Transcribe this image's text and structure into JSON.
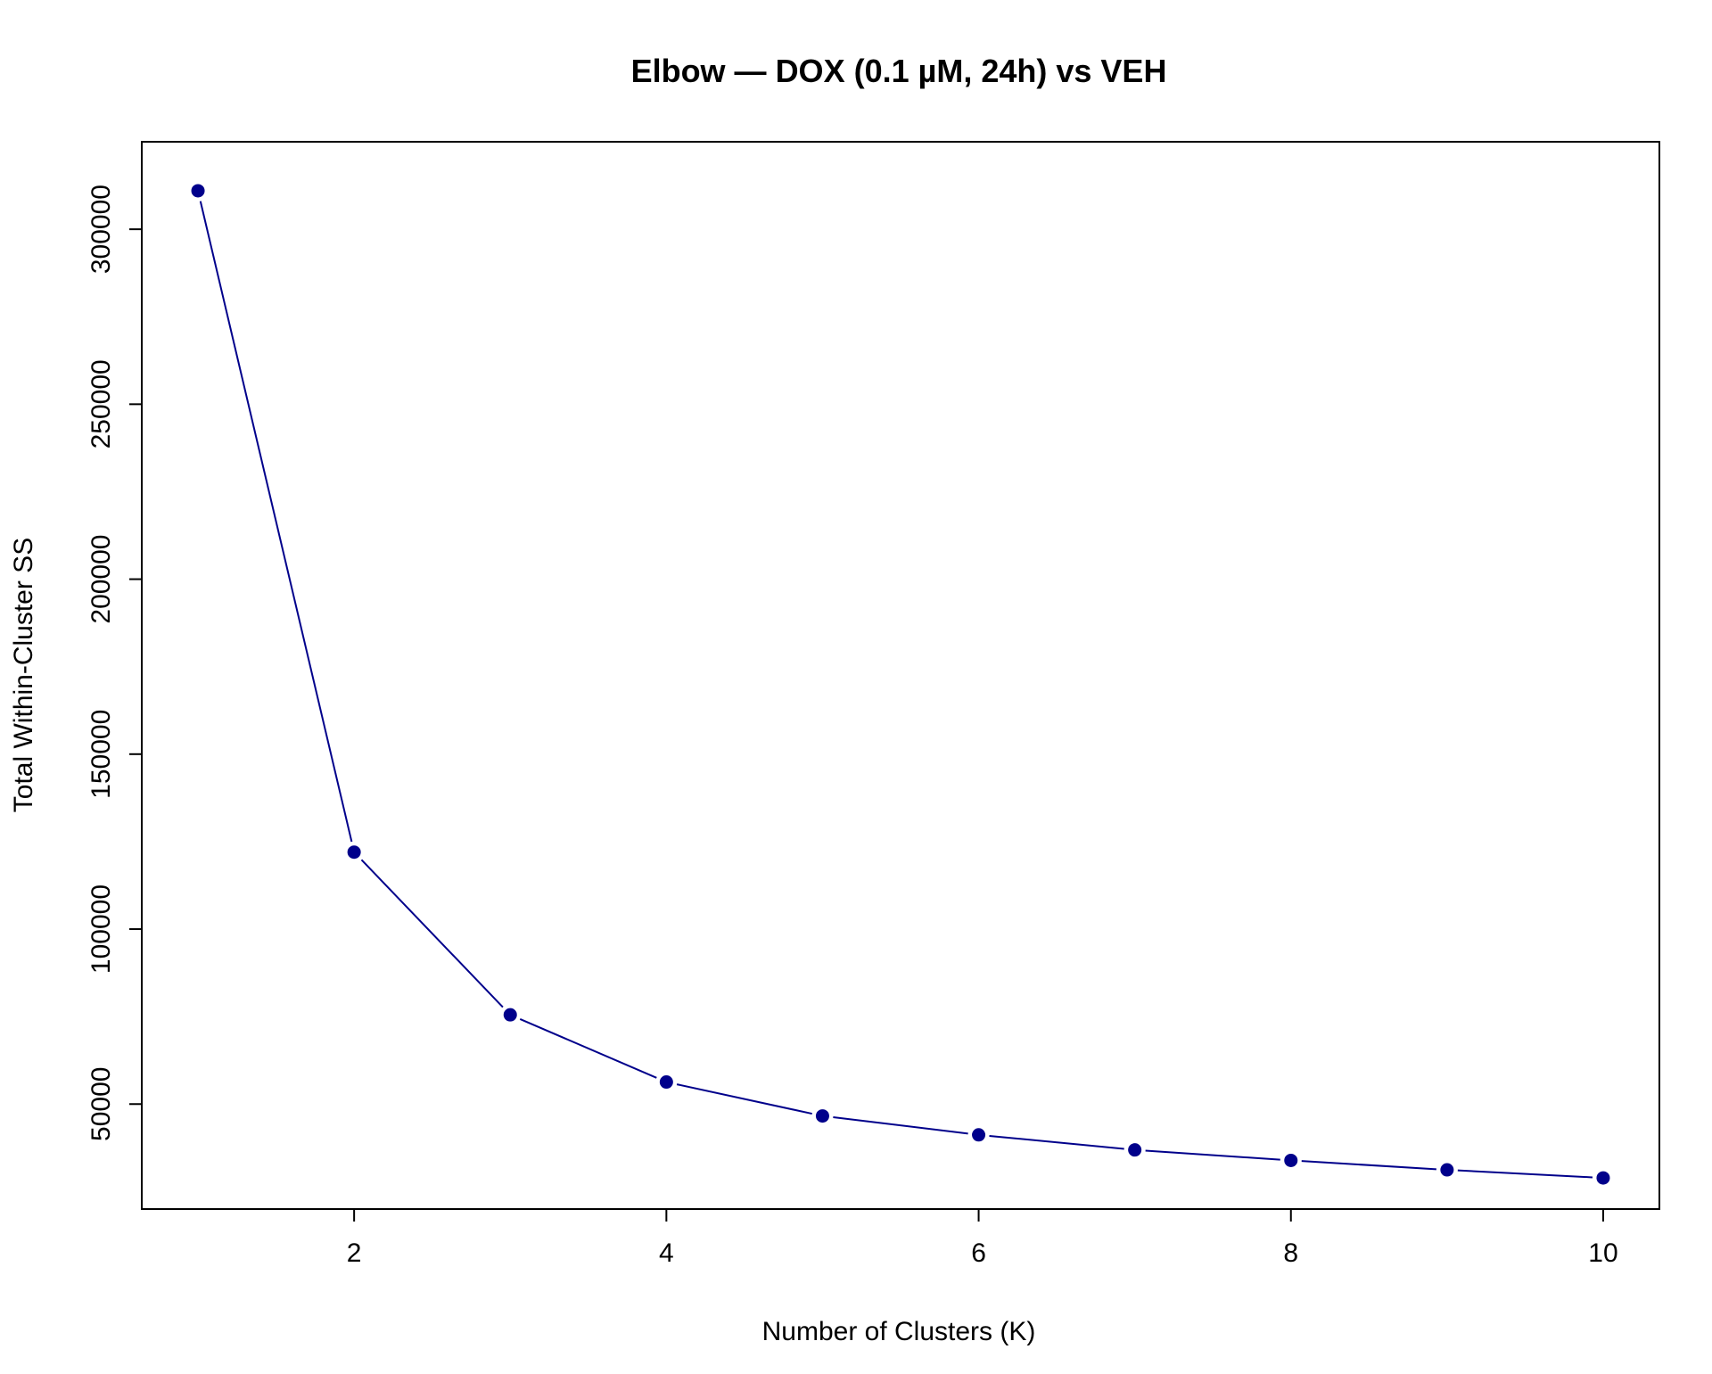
{
  "chart_data": {
    "type": "line",
    "title": "Elbow — DOX (0.1 µM, 24h) vs VEH",
    "xlabel": "Number of Clusters (K)",
    "ylabel": "Total Within-Cluster SS",
    "x": [
      1,
      2,
      3,
      4,
      5,
      6,
      7,
      8,
      9,
      10
    ],
    "y": [
      311000,
      122000,
      75500,
      56300,
      46600,
      41200,
      36900,
      33900,
      31200,
      28900
    ],
    "xlim": [
      0.64,
      10.36
    ],
    "ylim": [
      20000,
      325000
    ],
    "x_ticks": [
      2,
      4,
      6,
      8,
      10
    ],
    "x_tick_labels": [
      "2",
      "4",
      "6",
      "8",
      "10"
    ],
    "y_ticks": [
      50000,
      100000,
      150000,
      200000,
      250000,
      300000
    ],
    "y_tick_labels": [
      "50000",
      "100000",
      "150000",
      "200000",
      "250000",
      "300000"
    ],
    "line_style": "both",
    "grid": false,
    "legend": "none",
    "color": "#00008B"
  }
}
